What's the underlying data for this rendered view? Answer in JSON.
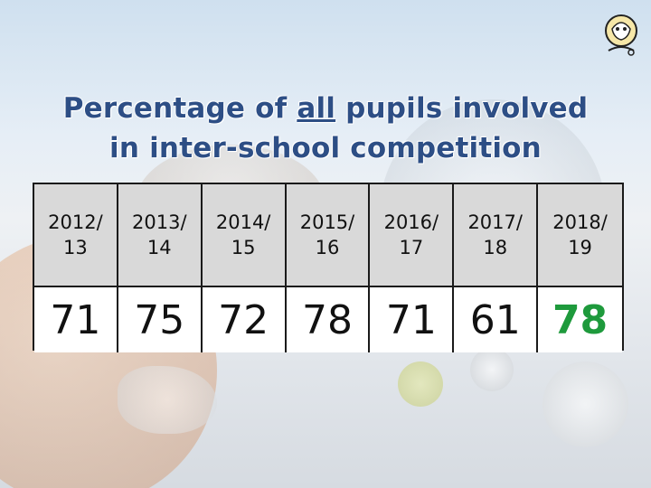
{
  "title": {
    "line1_before": "Percentage of ",
    "line1_underlined": "all",
    "line1_after": " pupils involved",
    "line2": "in inter-school competition"
  },
  "table": {
    "years": [
      "2012/\n13",
      "2013/\n14",
      "2014/\n15",
      "2015/\n16",
      "2016/\n17",
      "2017/\n18",
      "2018/\n19"
    ],
    "values": [
      "71",
      "75",
      "72",
      "78",
      "71",
      "61",
      "78"
    ],
    "highlight_color": "#1e9a3c"
  },
  "icons": {
    "logo": "school-crest-logo"
  }
}
